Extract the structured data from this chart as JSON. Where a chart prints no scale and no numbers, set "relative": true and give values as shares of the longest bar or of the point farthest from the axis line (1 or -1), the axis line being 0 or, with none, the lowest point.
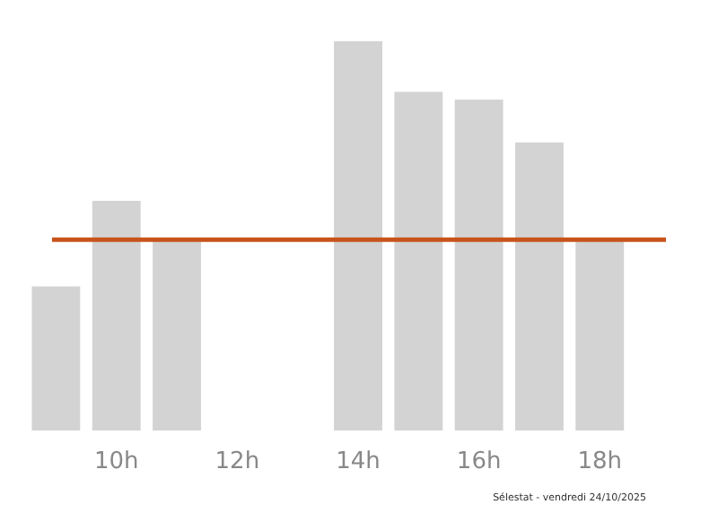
{
  "chart_data": {
    "type": "bar",
    "relative": true,
    "categories": [
      null,
      "10h",
      null,
      "12h",
      null,
      "14h",
      null,
      "16h",
      null,
      "18h",
      null
    ],
    "values": [
      0.37,
      0.59,
      0.49,
      0,
      0,
      1,
      0.87,
      0.85,
      0.74,
      0.49,
      0
    ],
    "color": "#d3d3d3",
    "ref_lines": [
      {
        "axis": "y",
        "value": 0.49,
        "color": "#c8531a"
      }
    ],
    "annotations": [
      "Sélestat - vendredi 24/10/2025"
    ]
  }
}
